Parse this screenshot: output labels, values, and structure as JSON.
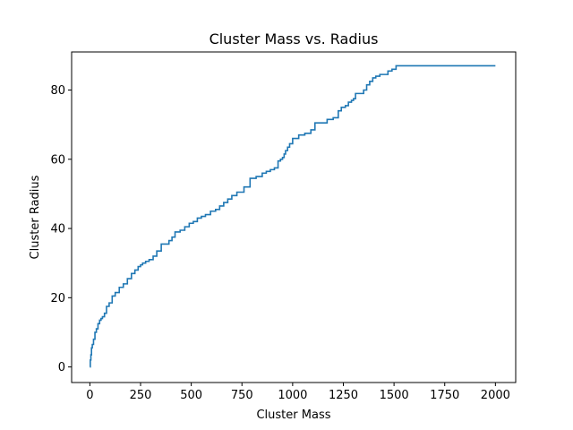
{
  "chart_data": {
    "type": "line",
    "title": "Cluster Mass vs. Radius",
    "xlabel": "Cluster Mass",
    "ylabel": "Cluster Radius",
    "xlim": [
      -90,
      2100
    ],
    "ylim": [
      -4.5,
      91
    ],
    "xticks": [
      0,
      250,
      500,
      750,
      1000,
      1250,
      1500,
      1750,
      2000
    ],
    "xtick_labels": [
      "0",
      "250",
      "500",
      "750",
      "1000",
      "1250",
      "1500",
      "1750",
      "2000"
    ],
    "yticks": [
      0,
      20,
      40,
      60,
      80
    ],
    "ytick_labels": [
      "0",
      "20",
      "40",
      "60",
      "80"
    ],
    "grid": false,
    "legend": "none",
    "series": [
      {
        "color": "#1f77b4",
        "step": true,
        "x": [
          0,
          2,
          5,
          8,
          12,
          18,
          25,
          32,
          40,
          48,
          55,
          62,
          72,
          82,
          95,
          110,
          125,
          145,
          165,
          185,
          205,
          222,
          238,
          250,
          260,
          275,
          292,
          312,
          330,
          352,
          372,
          390,
          405,
          420,
          445,
          468,
          490,
          510,
          530,
          550,
          570,
          595,
          620,
          640,
          660,
          680,
          700,
          725,
          760,
          790,
          820,
          850,
          870,
          890,
          910,
          928,
          940,
          950,
          958,
          965,
          975,
          985,
          1000,
          1030,
          1060,
          1090,
          1110,
          1140,
          1170,
          1200,
          1225,
          1240,
          1260,
          1275,
          1290,
          1300,
          1310,
          1330,
          1350,
          1365,
          1380,
          1395,
          1410,
          1430,
          1450,
          1470,
          1490,
          1510,
          1530,
          1555,
          1575,
          1600,
          1625,
          1650,
          1670,
          1690,
          1705,
          1720,
          1740,
          1760,
          1790,
          1810,
          1830,
          1845,
          1860,
          1875,
          1885,
          1900,
          1925,
          1950,
          1965,
          1980,
          2000
        ],
        "values": [
          0,
          2,
          3.5,
          5.5,
          6.5,
          8,
          10,
          11,
          12.5,
          13.5,
          14,
          14.5,
          15.5,
          17.5,
          18.5,
          20.5,
          21.5,
          23,
          24,
          25.5,
          27,
          28,
          29,
          29.5,
          30,
          30.5,
          31,
          32,
          33.5,
          35.5,
          35.5,
          36.5,
          37.5,
          39,
          39.5,
          40.5,
          41.5,
          42,
          43,
          43.5,
          44,
          45,
          45.5,
          46.5,
          47.5,
          48.5,
          49.5,
          50.5,
          52,
          54.5,
          55,
          56,
          56.5,
          57,
          57.5,
          59.5,
          60,
          60.5,
          61.5,
          62.5,
          63.5,
          64.5,
          66,
          67,
          67.5,
          68.5,
          70.5,
          70.5,
          71.5,
          72,
          74,
          75,
          75.5,
          76.5,
          77,
          77.5,
          79,
          79,
          80,
          81.5,
          82.5,
          83.5,
          84,
          84.5,
          84.5,
          85.5,
          86,
          87,
          87,
          87,
          87,
          87,
          87,
          87,
          87,
          87,
          87,
          87,
          87,
          87,
          87,
          87,
          87,
          87,
          87,
          87,
          87,
          87,
          87,
          87,
          87,
          87,
          87
        ]
      }
    ]
  }
}
